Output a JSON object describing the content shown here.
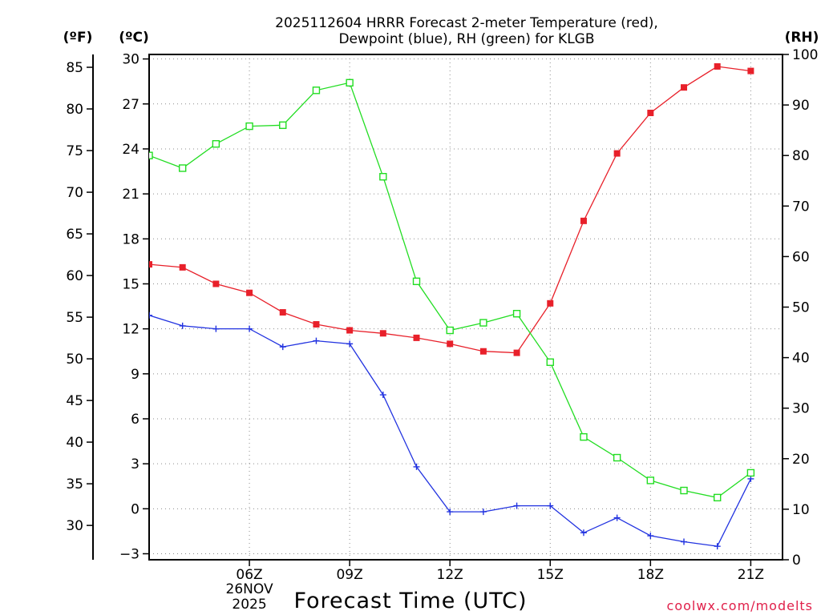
{
  "chart_data": {
    "type": "line",
    "title_line1": "2025112604 HRRR Forecast 2-meter Temperature (red),",
    "title_line2": "Dewpoint (blue), RH (green) for KLGB",
    "xlabel": "Forecast Time (UTC)",
    "credit": "coolwx.com/modelts",
    "unit_left_f": "(ºF)",
    "unit_left_c": "(ºC)",
    "unit_right_rh": "(RH)",
    "hours": [
      3,
      4,
      5,
      6,
      7,
      8,
      9,
      10,
      11,
      12,
      13,
      14,
      15,
      16,
      17,
      18,
      19,
      20,
      21,
      22
    ],
    "xlim": [
      3,
      21.95
    ],
    "x_ticks": [
      {
        "h": 6,
        "label": "06Z"
      },
      {
        "h": 9,
        "label": "09Z"
      },
      {
        "h": 12,
        "label": "12Z"
      },
      {
        "h": 15,
        "label": "15Z"
      },
      {
        "h": 18,
        "label": "18Z"
      },
      {
        "h": 21,
        "label": "21Z"
      }
    ],
    "date_line1": "26NOV",
    "date_line2": "2025",
    "date_tick_hour": 6,
    "ylim_c": [
      -3.4,
      30.3
    ],
    "yticks_c": [
      "-3",
      "0",
      "3",
      "6",
      "9",
      "12",
      "15",
      "18",
      "21",
      "24",
      "27",
      "30"
    ],
    "yticks_f": [
      "30",
      "35",
      "40",
      "45",
      "50",
      "55",
      "60",
      "65",
      "70",
      "75",
      "80",
      "85"
    ],
    "ylim_rh": [
      0,
      100
    ],
    "yticks_rh": [
      "0",
      "10",
      "20",
      "30",
      "40",
      "50",
      "60",
      "70",
      "80",
      "90",
      "100"
    ],
    "series": [
      {
        "name": "Temperature",
        "unit": "C",
        "color": "#e8202a",
        "marker": "filled-square",
        "values": [
          16.3,
          16.1,
          15.0,
          14.4,
          13.1,
          12.3,
          11.9,
          11.7,
          11.4,
          11.0,
          10.5,
          10.4,
          13.7,
          19.2,
          23.7,
          26.4,
          28.1,
          29.5,
          29.2,
          null
        ]
      },
      {
        "name": "Dewpoint",
        "unit": "C",
        "color": "#2233e0",
        "marker": "plus",
        "values": [
          12.9,
          12.2,
          12.0,
          12.0,
          10.8,
          11.2,
          11.0,
          7.6,
          2.8,
          -0.2,
          -0.2,
          0.2,
          0.2,
          -1.6,
          -0.6,
          -1.8,
          -2.2,
          -2.5,
          2.0,
          null
        ]
      },
      {
        "name": "RH",
        "unit": "%",
        "color": "#22dd22",
        "marker": "open-square",
        "values": [
          80.0,
          77.5,
          82.3,
          85.8,
          86.0,
          92.9,
          94.4,
          75.8,
          55.1,
          45.4,
          46.9,
          48.7,
          39.1,
          24.3,
          20.2,
          15.7,
          13.7,
          12.3,
          17.2,
          null
        ]
      }
    ]
  }
}
